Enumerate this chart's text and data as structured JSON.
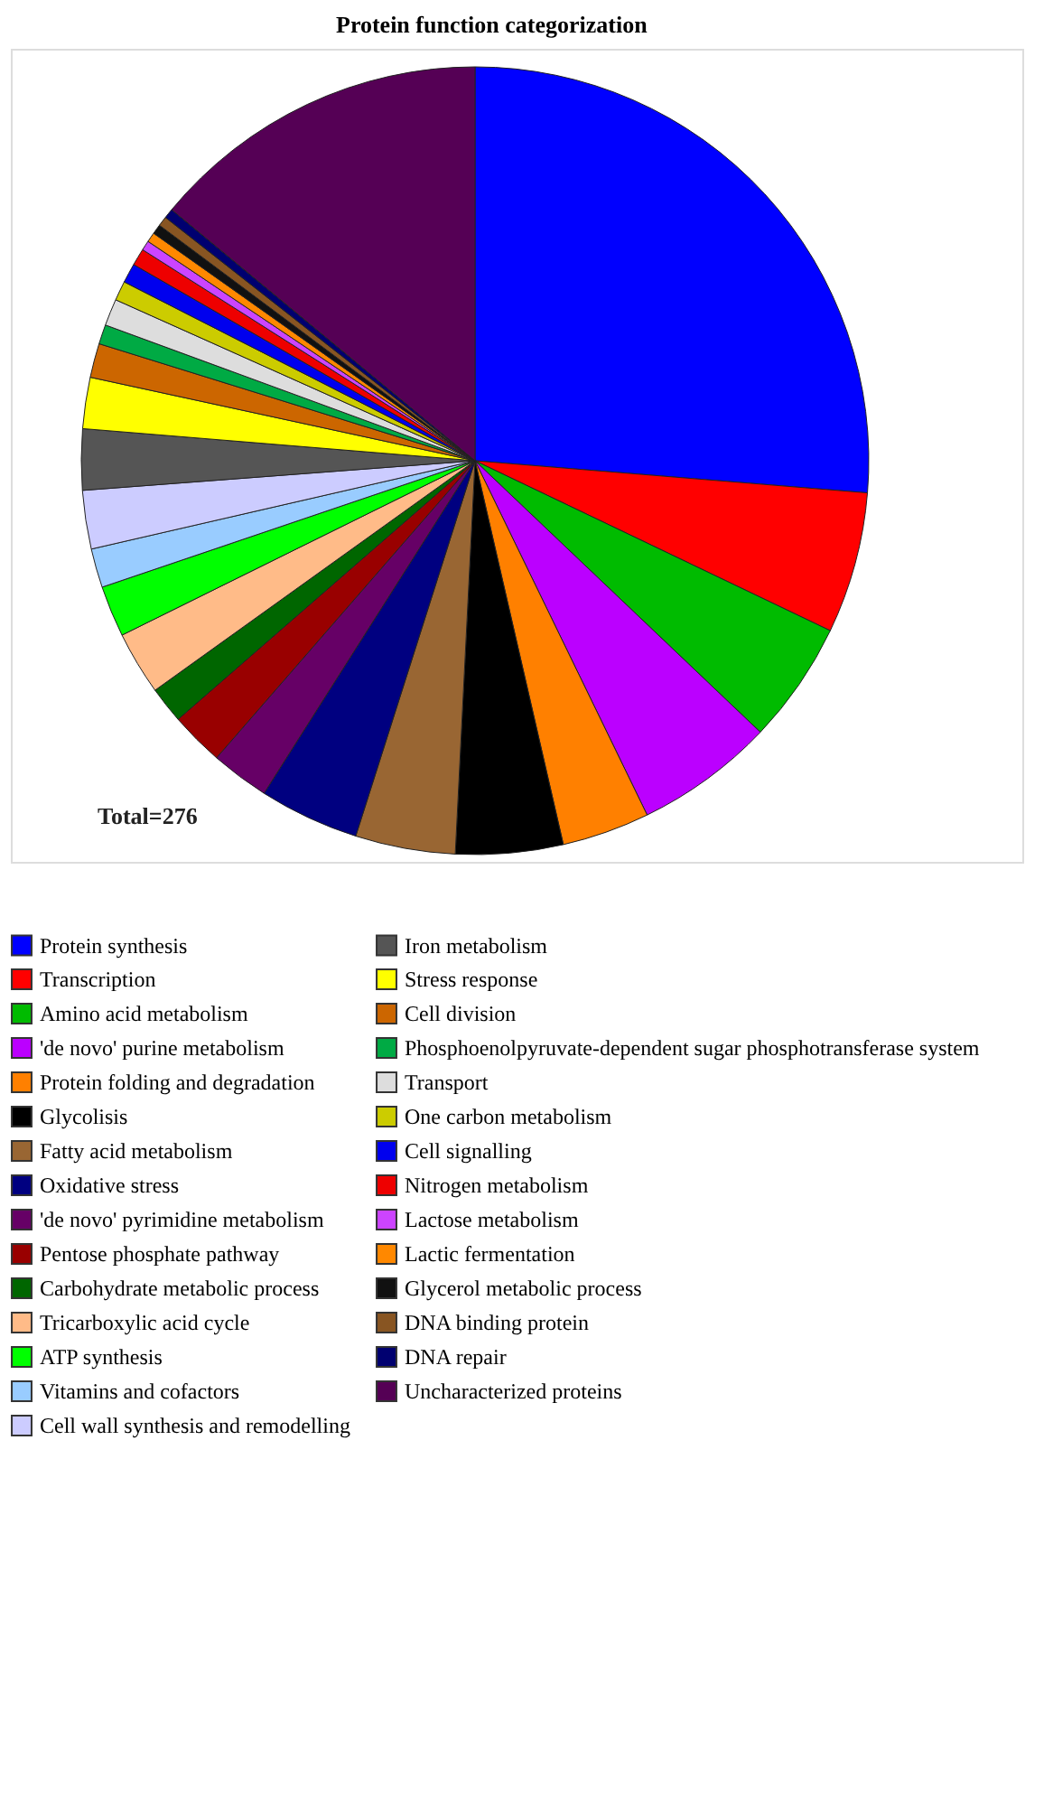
{
  "chart_data": {
    "type": "pie",
    "title": "Protein function categorization",
    "categories": [
      "Protein synthesis",
      "Transcription",
      "Amino acid metabolism",
      "'de novo' purine metabolism",
      "Protein folding and degradation",
      "Glycolisis",
      "Fatty acid metabolism",
      "Oxidative stress",
      "'de novo' pyrimidine metabolism",
      "Pentose phosphate pathway",
      "Carbohydrate metabolic process",
      "Tricarboxylic acid cycle",
      "ATP synthesis",
      "Vitamins and cofactors",
      "Cell wall synthesis and remodelling",
      "Iron metabolism",
      "Stress response",
      "Cell division",
      "Phosphoenolpyruvate-dependent sugar phosphotransferase system",
      "Transport",
      "One carbon metabolism",
      "Cell signalling",
      "Nitrogen metabolism",
      "Lactose metabolism",
      "Lactic fermentation",
      "Glycerol metabolic process",
      "DNA binding protein",
      "DNA repair",
      "Uncharacterized proteins"
    ],
    "values": [
      26.3,
      5.8,
      5.0,
      5.7,
      3.6,
      4.4,
      4.1,
      4.1,
      2.4,
      2.2,
      1.5,
      2.6,
      2.1,
      1.6,
      2.4,
      2.5,
      2.1,
      1.4,
      0.8,
      1.1,
      0.8,
      0.8,
      0.7,
      0.4,
      0.4,
      0.4,
      0.4,
      0.4,
      14.0
    ],
    "colors": [
      "#0000ff",
      "#ff0000",
      "#00bb00",
      "#bb00ff",
      "#ff8000",
      "#000000",
      "#996633",
      "#000080",
      "#660066",
      "#990000",
      "#006600",
      "#ffbb88",
      "#00ff00",
      "#99ccff",
      "#ccccff",
      "#555555",
      "#ffff00",
      "#cc6600",
      "#00aa44",
      "#dddddd",
      "#cccc00",
      "#0000ee",
      "#ee0000",
      "#cc44ff",
      "#ff8800",
      "#111111",
      "#885522",
      "#000070",
      "#550055"
    ],
    "annotations": [
      "Total=276"
    ],
    "legend": "bottom"
  }
}
